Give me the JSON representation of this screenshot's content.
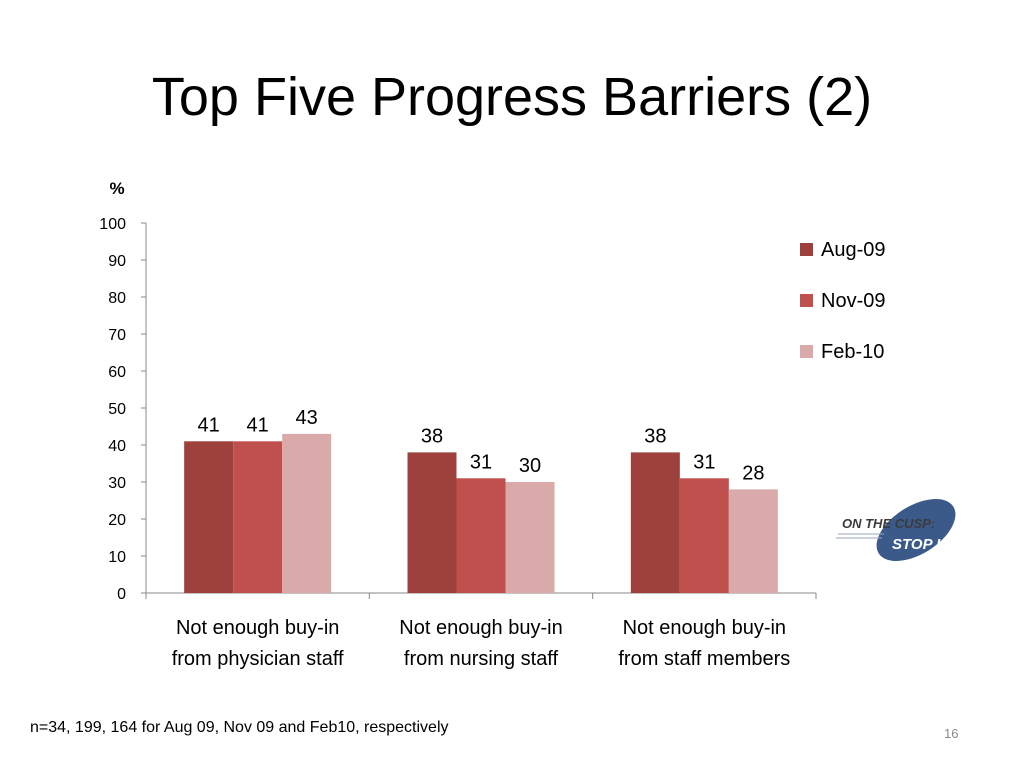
{
  "slide": {
    "title": "Top Five Progress Barriers (2)",
    "footnote": "n=34, 199, 164 for Aug 09, Nov 09 and Feb10, respectively",
    "page_number": "16"
  },
  "logo": {
    "line1": "ON THE CUSP:",
    "line2": "STOP HAI",
    "color": "#3b5a8a"
  },
  "chart_data": {
    "type": "bar",
    "ylabel": "%",
    "ylim": [
      0,
      100
    ],
    "yticks": [
      0,
      10,
      20,
      30,
      40,
      50,
      60,
      70,
      80,
      90,
      100
    ],
    "grid": false,
    "legend_position": "right",
    "categories": [
      [
        "Not enough buy-in",
        "from physician staff"
      ],
      [
        "Not enough buy-in",
        "from nursing staff"
      ],
      [
        "Not enough buy-in",
        "from staff members"
      ]
    ],
    "series": [
      {
        "name": "Aug-09",
        "color": "#9e413c",
        "values": [
          41,
          38,
          38
        ]
      },
      {
        "name": "Nov-09",
        "color": "#c0504d",
        "values": [
          41,
          31,
          31
        ]
      },
      {
        "name": "Feb-10",
        "color": "#d9aaa9",
        "values": [
          43,
          30,
          28
        ]
      }
    ]
  }
}
